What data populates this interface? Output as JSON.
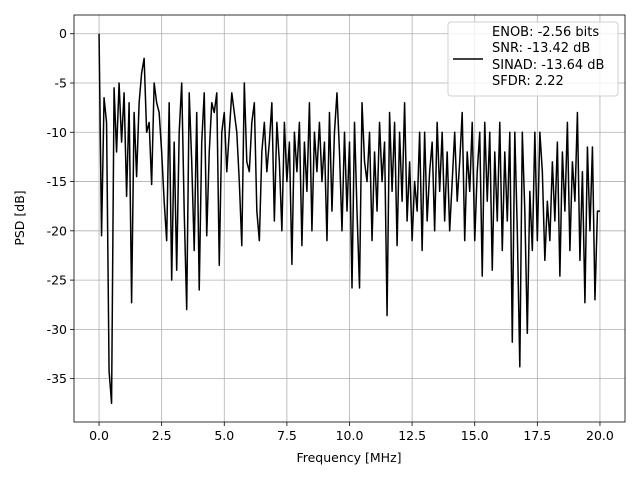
{
  "chart_data": {
    "type": "line",
    "xlabel": "Frequency [MHz]",
    "ylabel": "PSD [dB]",
    "x": [
      0,
      0.1,
      0.2,
      0.3,
      0.4,
      0.5,
      0.6,
      0.7,
      0.8,
      0.9,
      1,
      1.1,
      1.2,
      1.3,
      1.4,
      1.5,
      1.6,
      1.7,
      1.8,
      1.9,
      2,
      2.1,
      2.2,
      2.3,
      2.4,
      2.5,
      2.6,
      2.7,
      2.8,
      2.9,
      3,
      3.1,
      3.2,
      3.3,
      3.4,
      3.5,
      3.6,
      3.7,
      3.8,
      3.9,
      4,
      4.1,
      4.2,
      4.3,
      4.4,
      4.5,
      4.6,
      4.7,
      4.8,
      4.9,
      5,
      5.1,
      5.2,
      5.3,
      5.4,
      5.5,
      5.6,
      5.7,
      5.8,
      5.9,
      6,
      6.1,
      6.2,
      6.3,
      6.4,
      6.5,
      6.6,
      6.7,
      6.8,
      6.9,
      7,
      7.1,
      7.2,
      7.3,
      7.4,
      7.5,
      7.6,
      7.7,
      7.8,
      7.9,
      8,
      8.1,
      8.2,
      8.3,
      8.4,
      8.5,
      8.6,
      8.7,
      8.8,
      8.9,
      9,
      9.1,
      9.2,
      9.3,
      9.4,
      9.5,
      9.6,
      9.7,
      9.8,
      9.9,
      10,
      10.1,
      10.2,
      10.3,
      10.4,
      10.5,
      10.6,
      10.7,
      10.8,
      10.9,
      11,
      11.1,
      11.2,
      11.3,
      11.4,
      11.5,
      11.6,
      11.7,
      11.8,
      11.9,
      12,
      12.1,
      12.2,
      12.3,
      12.4,
      12.5,
      12.6,
      12.7,
      12.8,
      12.9,
      13,
      13.1,
      13.2,
      13.3,
      13.4,
      13.5,
      13.6,
      13.7,
      13.8,
      13.9,
      14,
      14.1,
      14.2,
      14.3,
      14.4,
      14.5,
      14.6,
      14.7,
      14.8,
      14.9,
      15,
      15.1,
      15.2,
      15.3,
      15.4,
      15.5,
      15.6,
      15.7,
      15.8,
      15.9,
      16,
      16.1,
      16.2,
      16.3,
      16.4,
      16.5,
      16.6,
      16.7,
      16.8,
      16.9,
      17,
      17.1,
      17.2,
      17.3,
      17.4,
      17.5,
      17.6,
      17.7,
      17.8,
      17.9,
      18,
      18.1,
      18.2,
      18.3,
      18.4,
      18.5,
      18.6,
      18.7,
      18.8,
      18.9,
      19,
      19.1,
      19.2,
      19.3,
      19.4,
      19.5,
      19.6,
      19.7,
      19.8,
      19.9,
      20
    ],
    "series": [
      {
        "name": "ENOB: -2.56 bits\nSNR: -13.42 dB\nSINAD: -13.64 dB\nSFDR: 2.22",
        "color": "#000000",
        "values": [
          0,
          -20.5,
          -6.5,
          -9,
          -34.2,
          -37.5,
          -5.5,
          -12,
          -5,
          -11,
          -6,
          -16.5,
          -7,
          -27.3,
          -8,
          -14.5,
          -7,
          -4,
          -2.5,
          -10,
          -9,
          -15.3,
          -5,
          -7,
          -8,
          -12,
          -17,
          -21,
          -7,
          -25,
          -11,
          -24,
          -10,
          -5,
          -18,
          -28,
          -6,
          -13,
          -22,
          -8,
          -26,
          -11,
          -6,
          -20.5,
          -12,
          -7,
          -8,
          -6,
          -23.5,
          -10,
          -8,
          -14,
          -10,
          -6,
          -8,
          -10,
          -15,
          -21.5,
          -5,
          -13,
          -14,
          -9,
          -7,
          -18,
          -21,
          -12,
          -9,
          -14,
          -11,
          -7,
          -19,
          -9,
          -13,
          -20,
          -9,
          -15,
          -11,
          -23.4,
          -10,
          -14,
          -9,
          -21.5,
          -11,
          -16,
          -7,
          -20,
          -10,
          -14,
          -9,
          -15,
          -11,
          -21,
          -8,
          -18,
          -10,
          -6,
          -12,
          -20,
          -10,
          -18,
          -11,
          -25.8,
          -9,
          -18,
          -25.8,
          -7,
          -13,
          -15,
          -10,
          -21,
          -12,
          -18,
          -9,
          -15,
          -11,
          -28.6,
          -8,
          -16,
          -9,
          -21.5,
          -10,
          -17,
          -7,
          -19,
          -13,
          -21,
          -15,
          -18,
          -10,
          -22,
          -10,
          -19,
          -14,
          -11,
          -20,
          -9,
          -16,
          -10,
          -19,
          -12,
          -20,
          -15,
          -10,
          -17,
          -13,
          -8,
          -21,
          -12,
          -16,
          -9,
          -21,
          -14,
          -10,
          -24.6,
          -9,
          -17,
          -10,
          -24,
          -12,
          -19,
          -9,
          -22,
          -12,
          -19,
          -10,
          -31.3,
          -10,
          -20,
          -33.8,
          -10,
          -18,
          -30.4,
          -16,
          -22,
          -10,
          -21,
          -10,
          -14,
          -23,
          -17,
          -21,
          -13,
          -19,
          -11,
          -24.6,
          -12,
          -18,
          -9,
          -22,
          -13,
          -17,
          -8,
          -23,
          -14,
          -27.3,
          -11.5,
          -20,
          -11.5,
          -27,
          -18,
          -18
        ]
      }
    ],
    "xlim": [
      -1,
      21
    ],
    "xticks": [
      {
        "value": 0,
        "label": "0.0"
      },
      2.5,
      {
        "value": 5,
        "label": "5.0"
      },
      7.5,
      {
        "value": 10,
        "label": "10.0"
      },
      12.5,
      {
        "value": 15,
        "label": "15.0"
      },
      17.5,
      {
        "value": 20,
        "label": "20.0"
      }
    ],
    "ylim": [
      -39.4,
      1.9
    ],
    "yticks": [
      0,
      -5,
      -10,
      -15,
      -20,
      -25,
      -30,
      -35
    ],
    "grid": true,
    "legend": "upper right"
  }
}
